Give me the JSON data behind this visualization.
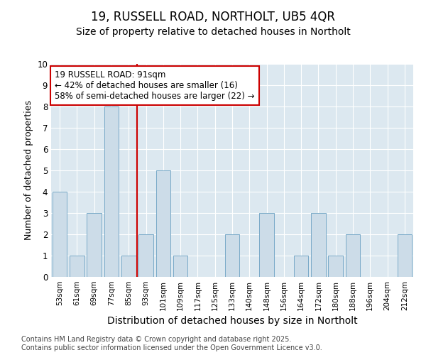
{
  "title_line1": "19, RUSSELL ROAD, NORTHOLT, UB5 4QR",
  "title_line2": "Size of property relative to detached houses in Northolt",
  "xlabel": "Distribution of detached houses by size in Northolt",
  "ylabel": "Number of detached properties",
  "categories": [
    "53sqm",
    "61sqm",
    "69sqm",
    "77sqm",
    "85sqm",
    "93sqm",
    "101sqm",
    "109sqm",
    "117sqm",
    "125sqm",
    "133sqm",
    "140sqm",
    "148sqm",
    "156sqm",
    "164sqm",
    "172sqm",
    "180sqm",
    "188sqm",
    "196sqm",
    "204sqm",
    "212sqm"
  ],
  "values": [
    4,
    1,
    3,
    8,
    1,
    2,
    5,
    1,
    0,
    0,
    2,
    0,
    3,
    0,
    1,
    3,
    1,
    2,
    0,
    0,
    2
  ],
  "bar_color": "#ccdce8",
  "bar_edge_color": "#7aaac8",
  "highlight_index": 5,
  "highlight_line_color": "#cc0000",
  "ylim": [
    0,
    10
  ],
  "yticks": [
    0,
    1,
    2,
    3,
    4,
    5,
    6,
    7,
    8,
    9,
    10
  ],
  "annotation_text_line1": "19 RUSSELL ROAD: 91sqm",
  "annotation_text_line2": "← 42% of detached houses are smaller (16)",
  "annotation_text_line3": "58% of semi-detached houses are larger (22) →",
  "annotation_box_color": "#ffffff",
  "annotation_box_edge_color": "#cc0000",
  "fig_background_color": "#ffffff",
  "plot_bg_color": "#dce8f0",
  "grid_color": "#ffffff",
  "footer_text": "Contains HM Land Registry data © Crown copyright and database right 2025.\nContains public sector information licensed under the Open Government Licence v3.0.",
  "title_fontsize": 12,
  "subtitle_fontsize": 10,
  "annotation_fontsize": 8.5,
  "footer_fontsize": 7,
  "ylabel_fontsize": 9,
  "xlabel_fontsize": 10
}
